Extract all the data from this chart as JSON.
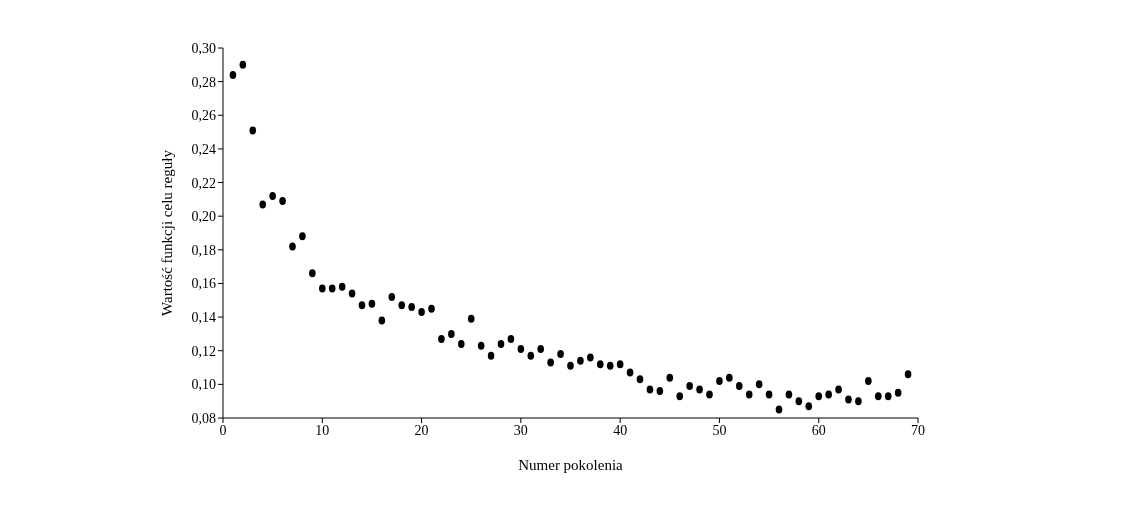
{
  "chart_data": {
    "type": "scatter",
    "xlabel": "Numer pokolenia",
    "ylabel": "Wartość funkcji celu reguły",
    "x": [
      1,
      2,
      3,
      4,
      5,
      6,
      7,
      8,
      9,
      10,
      11,
      12,
      13,
      14,
      15,
      16,
      17,
      18,
      19,
      20,
      21,
      22,
      23,
      24,
      25,
      26,
      27,
      28,
      29,
      30,
      31,
      32,
      33,
      34,
      35,
      36,
      37,
      38,
      39,
      40,
      41,
      42,
      43,
      44,
      45,
      46,
      47,
      48,
      49,
      50,
      51,
      52,
      53,
      54,
      55,
      56,
      57,
      58,
      59,
      60,
      61,
      62,
      63,
      64,
      65,
      66,
      67,
      68,
      69
    ],
    "series": [
      {
        "color": "#000000",
        "values": [
          0.284,
          0.29,
          0.251,
          0.207,
          0.212,
          0.209,
          0.182,
          0.188,
          0.166,
          0.157,
          0.157,
          0.158,
          0.154,
          0.147,
          0.148,
          0.138,
          0.152,
          0.147,
          0.146,
          0.143,
          0.145,
          0.127,
          0.13,
          0.124,
          0.139,
          0.123,
          0.117,
          0.124,
          0.127,
          0.121,
          0.117,
          0.121,
          0.113,
          0.118,
          0.111,
          0.114,
          0.116,
          0.112,
          0.111,
          0.112,
          0.107,
          0.103,
          0.097,
          0.096,
          0.104,
          0.093,
          0.099,
          0.097,
          0.094,
          0.102,
          0.104,
          0.099,
          0.094,
          0.1,
          0.094,
          0.085,
          0.094,
          0.09,
          0.087,
          0.093,
          0.094,
          0.097,
          0.091,
          0.09,
          0.102,
          0.093,
          0.093,
          0.095,
          0.106
        ]
      }
    ],
    "marker": "circle",
    "grid": false,
    "legend": false,
    "xlim": [
      0,
      70
    ],
    "xticks": [
      0,
      10,
      20,
      30,
      40,
      50,
      60,
      70
    ],
    "ylim": [
      0.08,
      0.3
    ],
    "yticks": [
      {
        "value": 0.08,
        "label": "0,08"
      },
      {
        "value": 0.1,
        "label": "0,10"
      },
      {
        "value": 0.12,
        "label": "0,12"
      },
      {
        "value": 0.14,
        "label": "0,14"
      },
      {
        "value": 0.16,
        "label": "0,16"
      },
      {
        "value": 0.18,
        "label": "0,18"
      },
      {
        "value": 0.2,
        "label": "0,20"
      },
      {
        "value": 0.22,
        "label": "0,22"
      },
      {
        "value": 0.24,
        "label": "0,24"
      },
      {
        "value": 0.26,
        "label": "0,26"
      },
      {
        "value": 0.28,
        "label": "0,28"
      },
      {
        "value": 0.3,
        "label": "0,30"
      }
    ]
  }
}
